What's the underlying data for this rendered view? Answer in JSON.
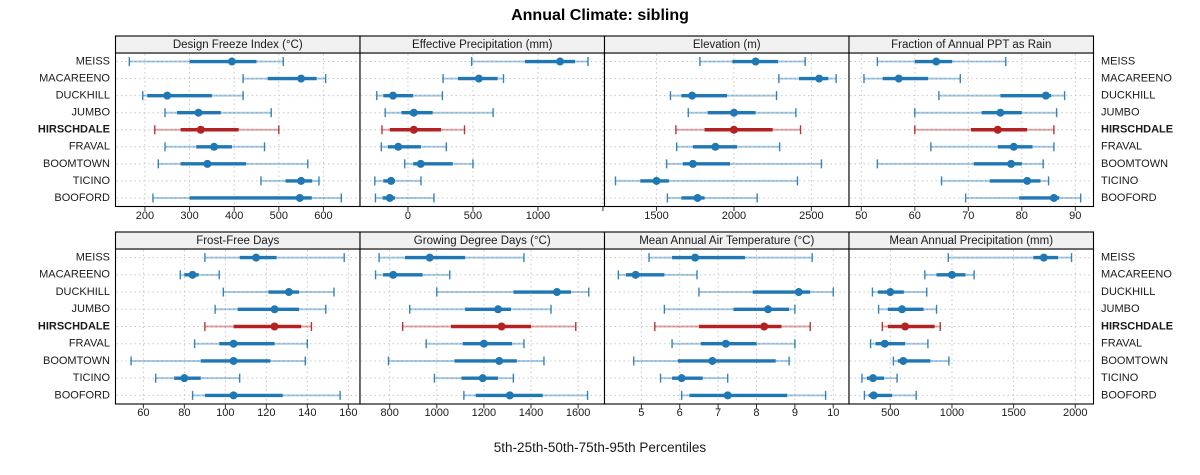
{
  "title": "Annual Climate: sibling",
  "caption": "5th-25th-50th-75th-95th Percentiles",
  "colors": {
    "series_blue": "#1f77b4",
    "highlight_red": "#b22222",
    "grid": "#c8c8c8",
    "panel_border": "#000000",
    "header_fill": "#f0f0f0",
    "text": "#1a1a1a"
  },
  "chart_data": {
    "type": "dotplot-trellis",
    "percentiles": [
      "5th",
      "25th",
      "50th",
      "75th",
      "95th"
    ],
    "sites": [
      "MEISS",
      "MACAREENO",
      "DUCKHILL",
      "JUMBO",
      "HIRSCHDALE",
      "FRAVAL",
      "BOOMTOWN",
      "TICINO",
      "BOOFORD"
    ],
    "highlight_site": "HIRSCHDALE",
    "legend_position": "none",
    "grid": "dotted",
    "panels": [
      {
        "title": "Design Freeze Index (°C)",
        "xlim": [
          134,
          682
        ],
        "ticks": [
          200,
          300,
          400,
          500,
          600
        ],
        "tick_labels": [
          "200",
          "300",
          "400",
          "500",
          "600"
        ],
        "values": [
          [
            165,
            300,
            395,
            450,
            510
          ],
          [
            420,
            475,
            550,
            585,
            605
          ],
          [
            195,
            205,
            250,
            350,
            420
          ],
          [
            245,
            272,
            320,
            370,
            483
          ],
          [
            222,
            280,
            325,
            410,
            500
          ],
          [
            245,
            315,
            355,
            395,
            468
          ],
          [
            230,
            280,
            340,
            427,
            565
          ],
          [
            460,
            515,
            550,
            575,
            590
          ],
          [
            218,
            300,
            547,
            574,
            640
          ]
        ]
      },
      {
        "title": "Effective Precipitation (mm)",
        "xlim": [
          -369,
          1512
        ],
        "ticks": [
          0,
          500,
          1000,
          1500
        ],
        "tick_labels": [
          "0",
          "500",
          "1000",
          ""
        ],
        "values": [
          [
            490,
            900,
            1170,
            1285,
            1385
          ],
          [
            270,
            385,
            545,
            690,
            735
          ],
          [
            -240,
            -190,
            -115,
            40,
            265
          ],
          [
            -175,
            -50,
            45,
            190,
            655
          ],
          [
            -200,
            -140,
            45,
            255,
            435
          ],
          [
            -205,
            -155,
            -75,
            100,
            295
          ],
          [
            -25,
            40,
            98,
            345,
            500
          ],
          [
            -255,
            -190,
            -130,
            -100,
            100
          ],
          [
            -250,
            -195,
            -140,
            -100,
            200
          ]
        ]
      },
      {
        "title": "Elevation (m)",
        "xlim": [
          1164,
          2743
        ],
        "ticks": [
          1500,
          2000,
          2500
        ],
        "tick_labels": [
          "1500",
          "2000",
          "2500"
        ],
        "values": [
          [
            1780,
            1990,
            2140,
            2285,
            2460
          ],
          [
            2290,
            2420,
            2550,
            2610,
            2660
          ],
          [
            1590,
            1660,
            1730,
            1955,
            2275
          ],
          [
            1705,
            1830,
            2000,
            2140,
            2400
          ],
          [
            1625,
            1810,
            2000,
            2250,
            2430
          ],
          [
            1630,
            1735,
            1880,
            2020,
            2295
          ],
          [
            1565,
            1670,
            1735,
            1975,
            2565
          ],
          [
            1235,
            1395,
            1500,
            1580,
            2410
          ],
          [
            1570,
            1660,
            1765,
            1810,
            2150
          ]
        ]
      },
      {
        "title": "Fraction of Annual PPT as Rain",
        "xlim": [
          47.7,
          93.4
        ],
        "ticks": [
          50,
          60,
          70,
          80,
          90
        ],
        "tick_labels": [
          "50",
          "60",
          "70",
          "80",
          "90"
        ],
        "values": [
          [
            53,
            60,
            64,
            67,
            77
          ],
          [
            50.5,
            54,
            57,
            62.5,
            68.5
          ],
          [
            64.5,
            76,
            84.5,
            85.5,
            88
          ],
          [
            60,
            72.5,
            76,
            80,
            86.5
          ],
          [
            60,
            70.5,
            75.5,
            81,
            86
          ],
          [
            63,
            75.5,
            78.5,
            82,
            86
          ],
          [
            53,
            71,
            78,
            80,
            84
          ],
          [
            65,
            74,
            81,
            83.5,
            85
          ],
          [
            69.5,
            79.5,
            86,
            87,
            91
          ]
        ]
      },
      {
        "title": "Frost-Free Days",
        "xlim": [
          46.4,
          165.7
        ],
        "ticks": [
          60,
          80,
          100,
          120,
          140,
          160
        ],
        "tick_labels": [
          "60",
          "80",
          "100",
          "120",
          "140",
          "160"
        ],
        "values": [
          [
            90,
            107,
            115,
            125,
            158
          ],
          [
            78,
            80,
            84,
            87,
            97
          ],
          [
            99,
            121,
            131,
            136,
            153
          ],
          [
            95,
            106,
            124,
            136,
            149
          ],
          [
            90,
            104,
            124,
            137,
            142
          ],
          [
            85,
            97,
            104,
            124,
            140
          ],
          [
            54,
            88,
            104,
            122,
            139
          ],
          [
            66,
            75,
            80,
            88,
            107
          ],
          [
            84,
            90,
            104,
            128,
            156
          ]
        ]
      },
      {
        "title": "Growing Degree Days (°C)",
        "xlim": [
          674,
          1712
        ],
        "ticks": [
          800,
          1000,
          1200,
          1400,
          1600
        ],
        "tick_labels": [
          "800",
          "1000",
          "1200",
          "1400",
          "1600"
        ],
        "values": [
          [
            755,
            865,
            970,
            1120,
            1370
          ],
          [
            740,
            772,
            815,
            940,
            1055
          ],
          [
            1000,
            1325,
            1510,
            1570,
            1645
          ],
          [
            885,
            1120,
            1260,
            1315,
            1485
          ],
          [
            855,
            1060,
            1275,
            1400,
            1590
          ],
          [
            955,
            1110,
            1200,
            1320,
            1370
          ],
          [
            795,
            1075,
            1265,
            1340,
            1455
          ],
          [
            990,
            1105,
            1195,
            1260,
            1325
          ],
          [
            1115,
            1165,
            1310,
            1450,
            1640
          ]
        ]
      },
      {
        "title": "Mean Annual Air Temperature (°C)",
        "xlim": [
          4.04,
          10.41
        ],
        "ticks": [
          5,
          6,
          7,
          8,
          9,
          10
        ],
        "tick_labels": [
          "5",
          "6",
          "7",
          "8",
          "9",
          "10"
        ],
        "values": [
          [
            5.2,
            5.8,
            6.4,
            7.7,
            9.45
          ],
          [
            4.4,
            4.6,
            4.85,
            5.6,
            6.45
          ],
          [
            6.5,
            7.9,
            9.1,
            9.4,
            10.0
          ],
          [
            5.6,
            7.4,
            8.3,
            8.85,
            9.0
          ],
          [
            5.35,
            6.5,
            8.2,
            8.65,
            9.4
          ],
          [
            5.8,
            6.55,
            7.2,
            8.0,
            9.0
          ],
          [
            4.8,
            5.95,
            6.85,
            8.5,
            8.85
          ],
          [
            5.5,
            5.8,
            6.05,
            6.6,
            7.25
          ],
          [
            6.05,
            6.25,
            7.25,
            8.8,
            9.8
          ]
        ]
      },
      {
        "title": "Mean Annual Precipitation (mm)",
        "xlim": [
          165,
          2148
        ],
        "ticks": [
          500,
          1000,
          1500,
          2000
        ],
        "tick_labels": [
          "500",
          "1000",
          "1500",
          "2000"
        ],
        "values": [
          [
            970,
            1660,
            1745,
            1860,
            1970
          ],
          [
            780,
            875,
            1000,
            1110,
            1180
          ],
          [
            355,
            400,
            500,
            610,
            795
          ],
          [
            405,
            480,
            595,
            770,
            875
          ],
          [
            435,
            480,
            620,
            860,
            905
          ],
          [
            340,
            380,
            455,
            620,
            805
          ],
          [
            525,
            560,
            605,
            825,
            975
          ],
          [
            270,
            310,
            360,
            450,
            555
          ],
          [
            290,
            325,
            365,
            515,
            710
          ]
        ]
      }
    ]
  }
}
